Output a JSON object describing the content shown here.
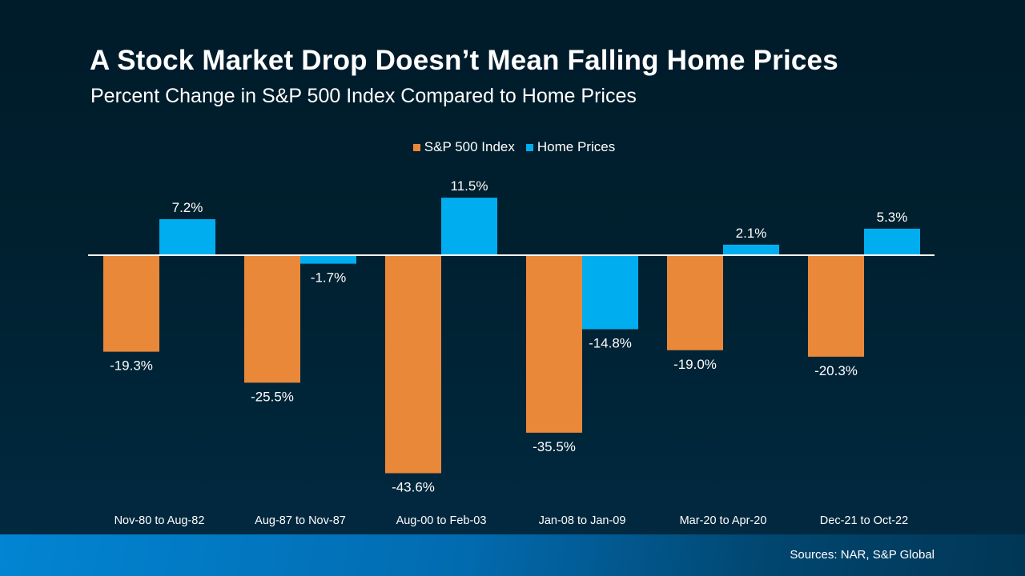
{
  "chart_data": {
    "type": "bar",
    "title": "A Stock Market Drop Doesn’t Mean Falling Home Prices",
    "subtitle": "Percent Change in S&P 500 Index Compared to Home Prices",
    "categories": [
      "Nov-80 to Aug-82",
      "Aug-87 to Nov-87",
      "Aug-00 to Feb-03",
      "Jan-08 to Jan-09",
      "Mar-20 to Apr-20",
      "Dec-21 to Oct-22"
    ],
    "series": [
      {
        "name": "S&P 500 Index",
        "color": "#ea883a",
        "values": [
          -19.3,
          -25.5,
          -43.6,
          -35.5,
          -19.0,
          -20.3
        ],
        "labels": [
          "-19.3%",
          "-25.5%",
          "-43.6%",
          "-35.5%",
          "-19.0%",
          "-20.3%"
        ]
      },
      {
        "name": "Home Prices",
        "color": "#00aeef",
        "values": [
          7.2,
          -1.7,
          11.5,
          -14.8,
          2.1,
          5.3
        ],
        "labels": [
          "7.2%",
          "-1.7%",
          "11.5%",
          "-14.8%",
          "2.1%",
          "5.3%"
        ]
      }
    ],
    "xlabel": "",
    "ylabel": "",
    "grid": false,
    "legend": "top-center"
  },
  "footer": {
    "source": "Sources: NAR, S&P Global"
  }
}
